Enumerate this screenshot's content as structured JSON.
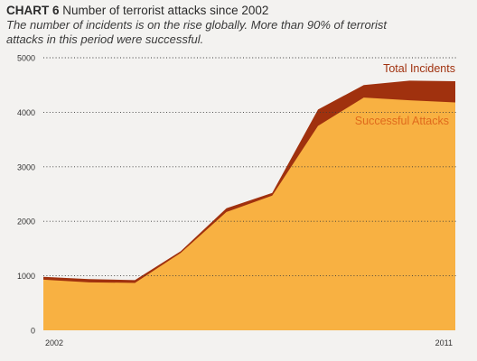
{
  "header": {
    "chart_number": "CHART 6",
    "title": "Number of terrorist attacks since 2002",
    "subtitle_line1": "The number of incidents is on the rise globally. More than 90% of terrorist",
    "subtitle_line2": "attacks in this period were successful."
  },
  "colors": {
    "total_incidents": "#a0310e",
    "successful_attacks": "#f8b142",
    "successful_label": "#e06a1c",
    "background": "#f3f2f0"
  },
  "chart_data": {
    "type": "area",
    "title": "Number of terrorist attacks since 2002",
    "xlabel": "",
    "ylabel": "",
    "x": [
      2002,
      2003,
      2004,
      2005,
      2006,
      2007,
      2008,
      2009,
      2010,
      2011
    ],
    "x_tick_labels": [
      "2002",
      "2011"
    ],
    "y_ticks": [
      0,
      1000,
      2000,
      3000,
      4000,
      5000
    ],
    "ylim": [
      0,
      5000
    ],
    "grid": true,
    "series": [
      {
        "name": "Total Incidents",
        "color": "#a0310e",
        "values": [
          980,
          940,
          920,
          1450,
          2240,
          2520,
          4050,
          4500,
          4580,
          4570
        ]
      },
      {
        "name": "Successful Attacks",
        "color": "#f8b142",
        "values": [
          930,
          880,
          870,
          1420,
          2170,
          2470,
          3750,
          4270,
          4220,
          4180
        ]
      }
    ]
  }
}
